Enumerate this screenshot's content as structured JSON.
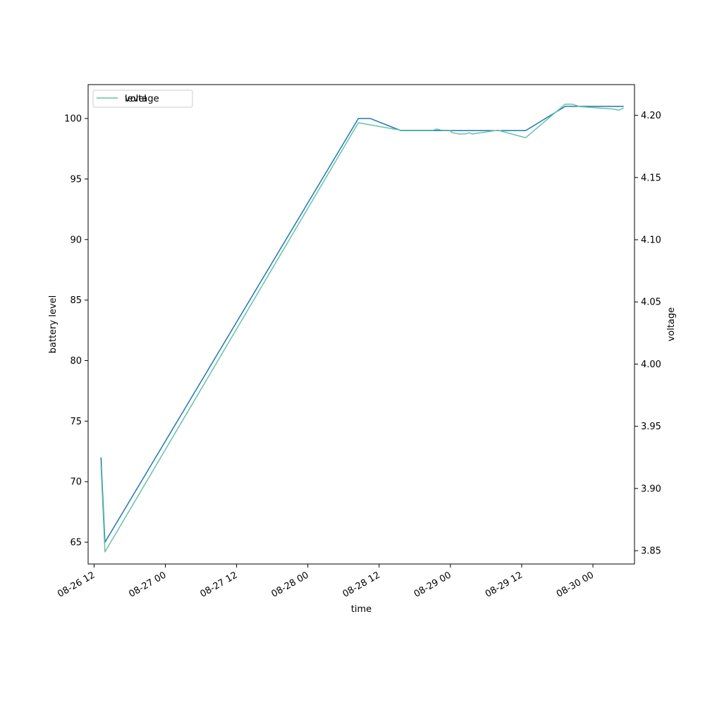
{
  "chart_data": {
    "type": "line",
    "xlabel": "time",
    "ylabel": "battery level",
    "y2label": "voltage",
    "xlim": [
      "2026-08-26 11:00",
      "2026-08-30 07:00"
    ],
    "ylim": [
      63.2,
      102.8
    ],
    "y2lim": [
      3.8393,
      4.2247
    ],
    "x_ticks": [
      "08-26 12",
      "08-27 00",
      "08-27 12",
      "08-28 00",
      "08-28 12",
      "08-29 00",
      "08-29 12",
      "08-30 00"
    ],
    "y_ticks": [
      65,
      70,
      75,
      80,
      85,
      90,
      95,
      100
    ],
    "y2_ticks": [
      "3.85",
      "3.90",
      "3.95",
      "4.00",
      "4.05",
      "4.10",
      "4.15",
      "4.20"
    ],
    "legend": {
      "placement": "upper-left",
      "entries": [
        "level",
        "voltage"
      ]
    },
    "series": [
      {
        "name": "level",
        "axis": "left",
        "color": "#1f77b4",
        "points": [
          [
            "2026-08-26 13:10",
            72
          ],
          [
            "2026-08-26 13:50",
            65
          ],
          [
            "2026-08-28 08:30",
            100
          ],
          [
            "2026-08-28 10:30",
            100
          ],
          [
            "2026-08-28 15:40",
            99
          ],
          [
            "2026-08-29 12:40",
            99
          ],
          [
            "2026-08-29 19:20",
            101
          ],
          [
            "2026-08-30 05:10",
            101
          ]
        ]
      },
      {
        "name": "voltage",
        "axis": "right",
        "color": "#66c2a5",
        "points": [
          [
            "2026-08-26 13:10",
            3.918
          ],
          [
            "2026-08-26 13:50",
            3.849
          ],
          [
            "2026-08-28 08:30",
            4.194
          ],
          [
            "2026-08-28 15:40",
            4.188
          ],
          [
            "2026-08-28 21:10",
            4.188
          ],
          [
            "2026-08-28 21:40",
            4.189
          ],
          [
            "2026-08-28 22:30",
            4.188
          ],
          [
            "2026-08-28 23:50",
            4.188
          ],
          [
            "2026-08-29 00:20",
            4.186
          ],
          [
            "2026-08-29 01:30",
            4.185
          ],
          [
            "2026-08-29 02:30",
            4.185
          ],
          [
            "2026-08-29 03:10",
            4.186
          ],
          [
            "2026-08-29 03:40",
            4.185
          ],
          [
            "2026-08-29 08:00",
            4.188
          ],
          [
            "2026-08-29 12:40",
            4.182
          ],
          [
            "2026-08-29 19:20",
            4.209
          ],
          [
            "2026-08-29 20:30",
            4.209
          ],
          [
            "2026-08-29 21:50",
            4.207
          ],
          [
            "2026-08-30 03:30",
            4.205
          ],
          [
            "2026-08-30 04:20",
            4.204
          ],
          [
            "2026-08-30 05:10",
            4.206
          ]
        ]
      }
    ]
  }
}
